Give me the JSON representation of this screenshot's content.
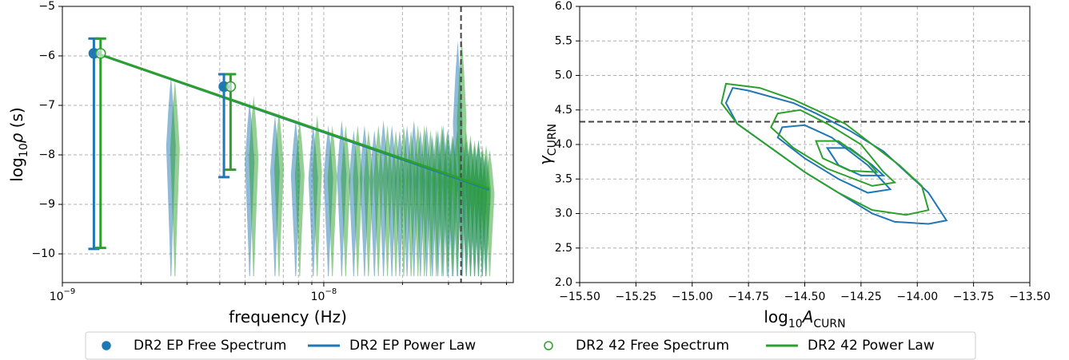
{
  "chart_data": [
    {
      "type": "violin",
      "xscale": "log",
      "grid": true,
      "xlabel": [
        {
          "text": "frequency (Hz)"
        }
      ],
      "ylabel": [
        {
          "text": "log"
        },
        {
          "text": "10",
          "sub": true
        },
        {
          "text": "ρ",
          "italic": true
        },
        {
          "text": " (s)"
        }
      ],
      "xlim": [
        1e-09,
        5.31e-08
      ],
      "ylim": [
        -10.58,
        -5
      ],
      "xticks": [
        {
          "value": 1e-09,
          "label": "10",
          "sup": "−9"
        },
        {
          "value": 1e-08,
          "label": "10",
          "sup": "−8"
        }
      ],
      "xminorticks": [
        2e-09,
        3e-09,
        4e-09,
        5e-09,
        6e-09,
        7e-09,
        8e-09,
        9e-09,
        2e-08,
        3e-08,
        4e-08,
        5e-08
      ],
      "yticks": [
        {
          "value": -10,
          "label": "−10"
        },
        {
          "value": -9,
          "label": "−9"
        },
        {
          "value": -8,
          "label": "−8"
        },
        {
          "value": -7,
          "label": "−7"
        },
        {
          "value": -6,
          "label": "−6"
        },
        {
          "value": -5,
          "label": "−5"
        }
      ],
      "vline": 3.35e-08,
      "violin_x": [
        2.64e-09,
        5.28e-09,
        6.6e-09,
        7.92e-09,
        9.24e-09,
        1.056e-08,
        1.188e-08,
        1.32e-08,
        1.452e-08,
        1.584e-08,
        1.716e-08,
        1.848e-08,
        1.98e-08,
        2.112e-08,
        2.244e-08,
        2.376e-08,
        2.508e-08,
        2.64e-08,
        2.772e-08,
        2.904e-08,
        3.036e-08,
        3.168e-08,
        3.3e-08,
        3.432e-08,
        3.564e-08,
        3.696e-08,
        3.828e-08,
        3.96e-08,
        4.092e-08,
        4.224e-08
      ],
      "violin_bottom": -10.45,
      "series": [
        {
          "name": "DR2 EP Free Spectrum",
          "kind": "points",
          "marker": "filled",
          "color": "#1f77b4",
          "x": [
            1.32e-09,
            4.15e-09
          ],
          "values": [
            -5.95,
            -6.62
          ],
          "lower": [
            -9.9,
            -8.45
          ],
          "upper": [
            -5.65,
            -6.37
          ],
          "violin_top": [
            -6.4,
            -6.9,
            -7.2,
            -7.3,
            -7.4,
            -7.4,
            -7.3,
            -7.5,
            -7.4,
            -7.5,
            -7.3,
            -7.4,
            -7.5,
            -7.4,
            -7.3,
            -7.5,
            -7.4,
            -7.6,
            -7.5,
            -7.4,
            -7.5,
            -7.6,
            -5.7,
            -7.6,
            -7.7,
            -7.7,
            -7.8,
            -7.7,
            -7.9,
            -8.0
          ]
        },
        {
          "name": "DR2 EP Power Law",
          "kind": "line",
          "color": "#1f77b4",
          "x": [
            1.32e-09,
            4.3e-08
          ],
          "values": [
            -5.93,
            -8.7
          ]
        },
        {
          "name": "DR2 42 Free Spectrum",
          "kind": "points",
          "marker": "open",
          "color": "#2ca02c",
          "x": [
            1.4e-09,
            4.4e-09
          ],
          "values": [
            -5.95,
            -6.62
          ],
          "lower": [
            -9.88,
            -8.3
          ],
          "upper": [
            -5.65,
            -6.37
          ],
          "violin_top": [
            -6.5,
            -6.8,
            -7.1,
            -7.3,
            -7.2,
            -7.4,
            -7.4,
            -7.4,
            -7.5,
            -7.4,
            -7.4,
            -7.5,
            -7.4,
            -7.5,
            -7.4,
            -7.4,
            -7.5,
            -7.5,
            -7.4,
            -7.5,
            -7.6,
            -7.5,
            -5.6,
            -7.5,
            -7.6,
            -7.7,
            -7.7,
            -7.8,
            -7.8,
            -7.9
          ]
        },
        {
          "name": "DR2 42 Power Law",
          "kind": "line",
          "color": "#2ca02c",
          "x": [
            1.32e-09,
            4.3e-08
          ],
          "values": [
            -5.93,
            -8.68
          ]
        }
      ]
    },
    {
      "type": "contour",
      "grid": true,
      "xlabel": [
        {
          "text": "log"
        },
        {
          "text": "10",
          "sub": true
        },
        {
          "text": "A",
          "italic": true
        },
        {
          "text": "CURN",
          "sub": true
        }
      ],
      "ylabel": [
        {
          "text": "γ",
          "italic": true
        },
        {
          "text": "CURN",
          "sub": true
        }
      ],
      "xlim": [
        -15.5,
        -13.5
      ],
      "ylim": [
        2,
        6
      ],
      "xticks": [
        {
          "value": -15.5,
          "label": "−15.50"
        },
        {
          "value": -15.25,
          "label": "−15.25"
        },
        {
          "value": -15,
          "label": "−15.00"
        },
        {
          "value": -14.75,
          "label": "−14.75"
        },
        {
          "value": -14.5,
          "label": "−14.50"
        },
        {
          "value": -14.25,
          "label": "−14.25"
        },
        {
          "value": -14,
          "label": "−14.00"
        },
        {
          "value": -13.75,
          "label": "−13.75"
        },
        {
          "value": -13.5,
          "label": "−13.50"
        }
      ],
      "yticks": [
        {
          "value": 2,
          "label": "2.0"
        },
        {
          "value": 2.5,
          "label": "2.5"
        },
        {
          "value": 3,
          "label": "3.0"
        },
        {
          "value": 3.5,
          "label": "3.5"
        },
        {
          "value": 4,
          "label": "4.0"
        },
        {
          "value": 4.5,
          "label": "4.5"
        },
        {
          "value": 5,
          "label": "5.0"
        },
        {
          "value": 5.5,
          "label": "5.5"
        },
        {
          "value": 6,
          "label": "6.0"
        }
      ],
      "hline": 4.33,
      "series": [
        {
          "color": "#1f77b4",
          "contours": [
            {
              "x": [
                -14.82,
                -14.75,
                -14.55,
                -14.45,
                -14.3,
                -14.15,
                -14.05,
                -13.95,
                -13.87,
                -13.95,
                -14.1,
                -14.2,
                -14.35,
                -14.5,
                -14.65,
                -14.8,
                -14.85
              ],
              "y": [
                4.82,
                4.78,
                4.6,
                4.45,
                4.2,
                3.9,
                3.6,
                3.3,
                2.9,
                2.85,
                2.88,
                3.0,
                3.3,
                3.6,
                3.95,
                4.3,
                4.6
              ]
            },
            {
              "x": [
                -14.6,
                -14.5,
                -14.38,
                -14.22,
                -14.12,
                -14.22,
                -14.35,
                -14.5,
                -14.62
              ],
              "y": [
                4.25,
                4.28,
                4.1,
                3.7,
                3.35,
                3.3,
                3.5,
                3.8,
                4.1
              ]
            },
            {
              "x": [
                -14.4,
                -14.3,
                -14.2,
                -14.15,
                -14.25,
                -14.35
              ],
              "y": [
                3.95,
                3.95,
                3.7,
                3.55,
                3.55,
                3.7
              ]
            }
          ]
        },
        {
          "color": "#2ca02c",
          "contours": [
            {
              "x": [
                -14.85,
                -14.7,
                -14.55,
                -14.45,
                -14.32,
                -14.2,
                -14.08,
                -13.98,
                -13.95,
                -14.05,
                -14.2,
                -14.35,
                -14.5,
                -14.65,
                -14.8,
                -14.87
              ],
              "y": [
                4.88,
                4.82,
                4.65,
                4.5,
                4.3,
                4.0,
                3.7,
                3.4,
                3.05,
                2.98,
                3.05,
                3.3,
                3.6,
                3.95,
                4.3,
                4.6
              ]
            },
            {
              "x": [
                -14.62,
                -14.52,
                -14.4,
                -14.25,
                -14.15,
                -14.1,
                -14.2,
                -14.4,
                -14.55,
                -14.65
              ],
              "y": [
                4.45,
                4.5,
                4.3,
                4.0,
                3.6,
                3.45,
                3.4,
                3.65,
                3.95,
                4.25
              ]
            },
            {
              "x": [
                -14.45,
                -14.35,
                -14.22,
                -14.18,
                -14.3,
                -14.42
              ],
              "y": [
                4.05,
                4.05,
                3.75,
                3.6,
                3.62,
                3.8
              ]
            }
          ]
        }
      ]
    }
  ]
}
